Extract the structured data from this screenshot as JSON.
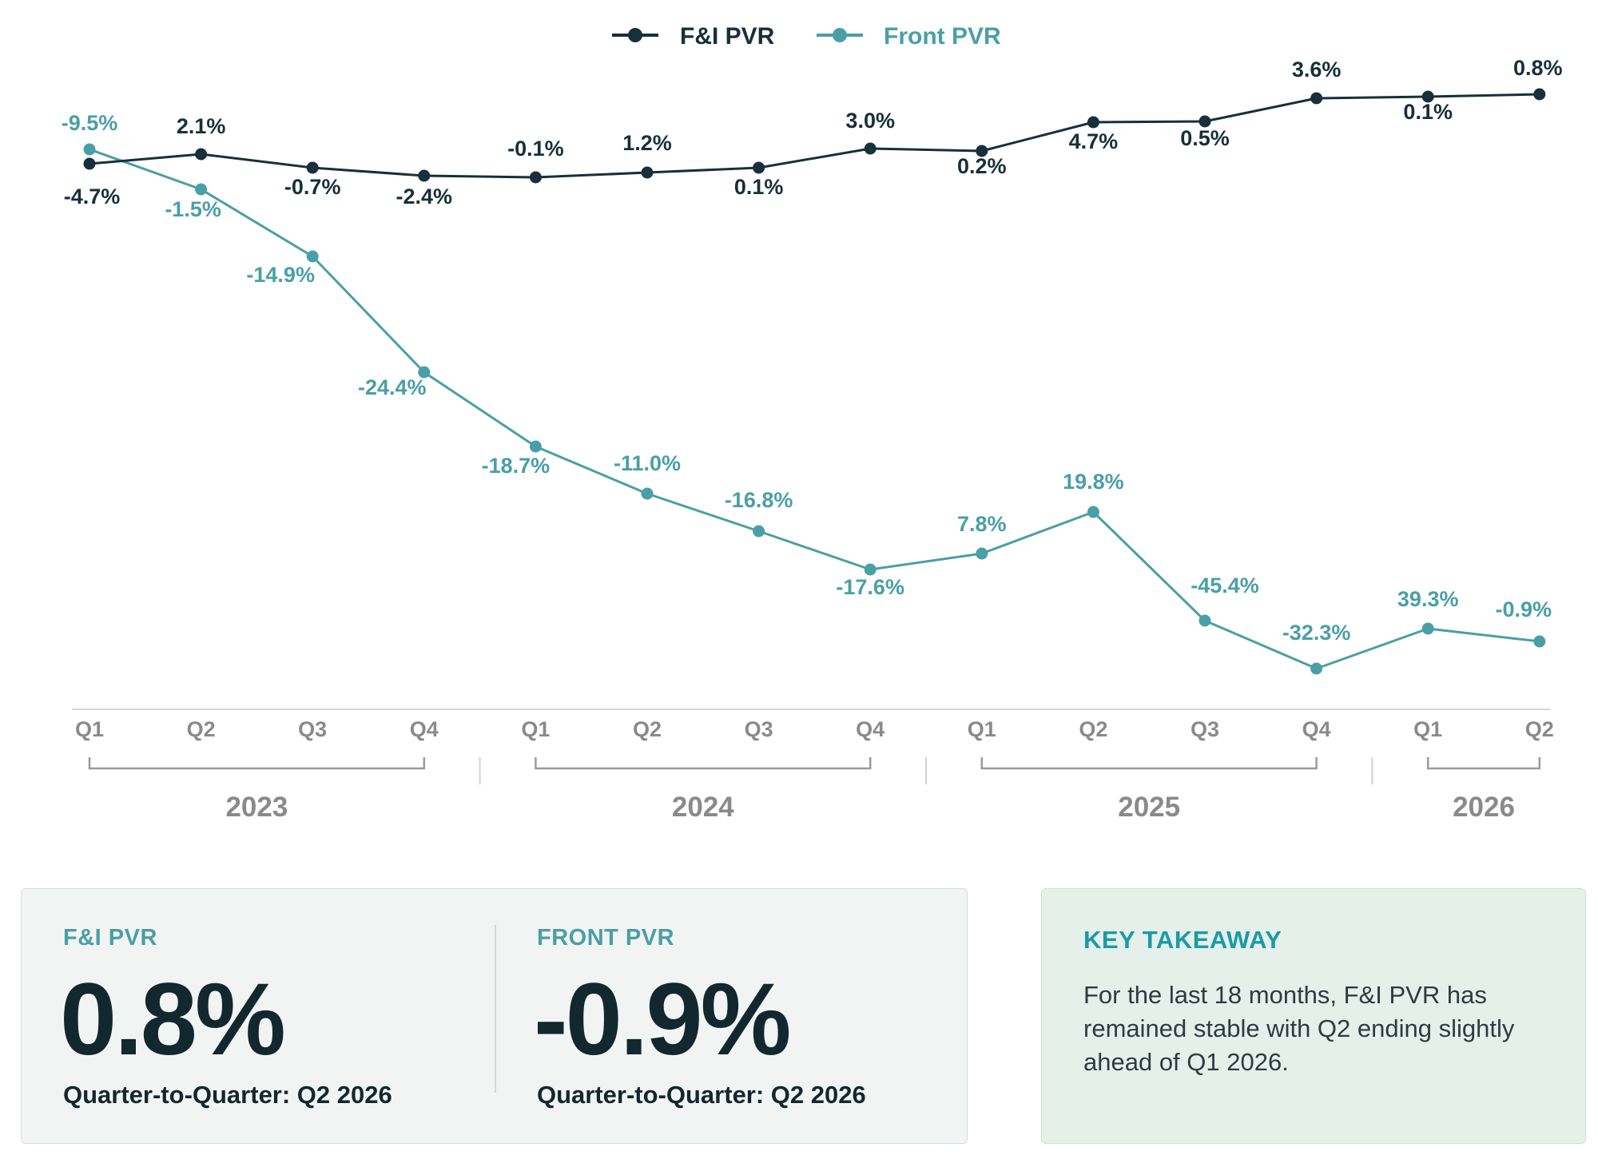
{
  "colors": {
    "fi": "#17303a",
    "front": "#4a9fa6",
    "axis": "#d5d5d5",
    "bracket": "#9a9a9a",
    "muted": "#8a8a8a"
  },
  "legend": [
    {
      "label": "F&I PVR",
      "series": "fi"
    },
    {
      "label": "Front PVR",
      "series": "front"
    }
  ],
  "chart_data": {
    "type": "line",
    "title": "",
    "xlabel": "",
    "ylabel": "",
    "grid": false,
    "legend_position": "top-center",
    "categories": [
      "Q1",
      "Q2",
      "Q3",
      "Q4",
      "Q1",
      "Q2",
      "Q3",
      "Q4",
      "Q1",
      "Q2",
      "Q3",
      "Q4",
      "Q1",
      "Q2"
    ],
    "year_groups": [
      {
        "year": "2023",
        "start": 0,
        "end": 3
      },
      {
        "year": "2024",
        "start": 4,
        "end": 7
      },
      {
        "year": "2025",
        "start": 8,
        "end": 11
      },
      {
        "year": "2026",
        "start": 12,
        "end": 13
      }
    ],
    "series": [
      {
        "name": "F&I PVR",
        "key": "fi",
        "labels": [
          "-4.7%",
          "2.1%",
          "-0.7%",
          "-2.4%",
          "-0.1%",
          "1.2%",
          "0.1%",
          "3.0%",
          "0.2%",
          "4.7%",
          "0.5%",
          "3.6%",
          "0.1%",
          "0.8%"
        ]
      },
      {
        "name": "Front PVR",
        "key": "front",
        "labels": [
          "-9.5%",
          "-1.5%",
          "-14.9%",
          "-24.4%",
          "-18.7%",
          "-11.0%",
          "-16.8%",
          "-17.6%",
          "7.8%",
          "19.8%",
          "-45.4%",
          "-32.3%",
          "39.3%",
          "-0.9%"
        ]
      }
    ]
  },
  "metrics": [
    {
      "label": "F&I PVR",
      "value": "0.8%",
      "sub": "Quarter-to-Quarter: Q2 2026"
    },
    {
      "label": "FRONT PVR",
      "value": "-0.9%",
      "sub": "Quarter-to-Quarter: Q2 2026"
    }
  ],
  "takeaway": {
    "title": "KEY TAKEAWAY",
    "text": "For the last 18 months, F&I PVR has remained stable with Q2 ending slightly ahead of Q1 2026."
  }
}
